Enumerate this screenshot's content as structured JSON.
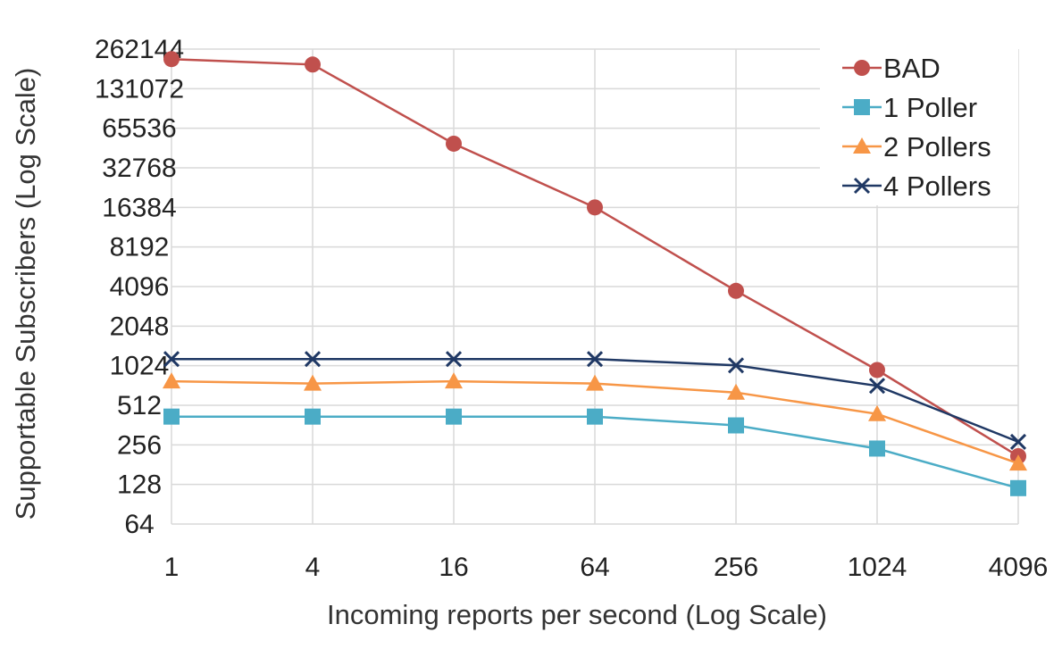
{
  "chart_data": {
    "type": "line",
    "xlabel": "Incoming reports per second (Log Scale)",
    "ylabel": "Supportable Subscribers (Log Scale)",
    "x_scale": "log2",
    "y_scale": "log2",
    "x": [
      1,
      4,
      16,
      64,
      256,
      1024,
      4096
    ],
    "x_tick_labels": [
      "1",
      "4",
      "16",
      "64",
      "256",
      "1024",
      "4096"
    ],
    "y_ticks": [
      64,
      128,
      256,
      512,
      1024,
      2048,
      4096,
      8192,
      16384,
      32768,
      65536,
      131072,
      262144
    ],
    "y_tick_labels": [
      "64",
      "128",
      "256",
      "512",
      "1024",
      "2048",
      "4096",
      "8192",
      "16384",
      "32768",
      "65536",
      "131072",
      "262144"
    ],
    "xlim": [
      1,
      4096
    ],
    "ylim": [
      64,
      262144
    ],
    "grid": "vertical",
    "legend_position": "top-right",
    "series": [
      {
        "name": "BAD",
        "marker": "circle",
        "color": "#c0504d",
        "values": [
          220000,
          200000,
          50000,
          16384,
          3800,
          950,
          210
        ]
      },
      {
        "name": "1 Poller",
        "marker": "square",
        "color": "#4bacc6",
        "values": [
          420,
          420,
          420,
          420,
          360,
          240,
          120
        ]
      },
      {
        "name": "2 Pollers",
        "marker": "triangle",
        "color": "#f79646",
        "values": [
          780,
          750,
          780,
          750,
          640,
          440,
          185
        ]
      },
      {
        "name": "4 Pollers",
        "marker": "x",
        "color": "#1f3864",
        "values": [
          1150,
          1150,
          1150,
          1150,
          1030,
          720,
          270
        ]
      }
    ]
  }
}
